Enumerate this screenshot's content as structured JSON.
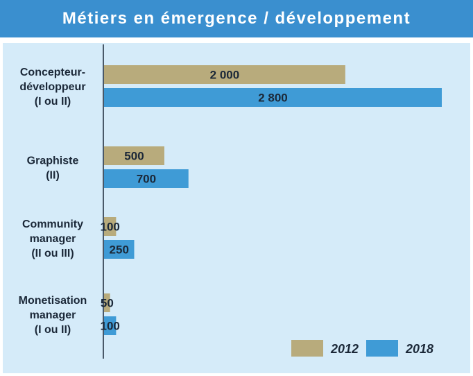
{
  "chart_data": {
    "type": "bar",
    "orientation": "horizontal",
    "title": "Métiers en émergence / développement",
    "categories": [
      [
        "Concepteur-",
        "développeur",
        "(I ou II)"
      ],
      [
        "Graphiste",
        "(II)"
      ],
      [
        "Community",
        "manager",
        "(II ou III)"
      ],
      [
        "Monetisation",
        "manager",
        "(I ou II)"
      ]
    ],
    "series": [
      {
        "name": "2012",
        "color": "#b8ab7c",
        "values": [
          2000,
          500,
          100,
          50
        ],
        "labels": [
          "2 000",
          "500",
          "100",
          "50"
        ]
      },
      {
        "name": "2018",
        "color": "#3f9bd6",
        "values": [
          2800,
          700,
          250,
          100
        ],
        "labels": [
          "2 800",
          "700",
          "250",
          "100"
        ]
      }
    ],
    "xlim": [
      0,
      2800
    ],
    "legend": "bottom-right",
    "grid": false
  },
  "colors": {
    "title_bg": "#3a8fcf",
    "panel_bg": "#d5ebf9",
    "axis": "#1b2838"
  }
}
